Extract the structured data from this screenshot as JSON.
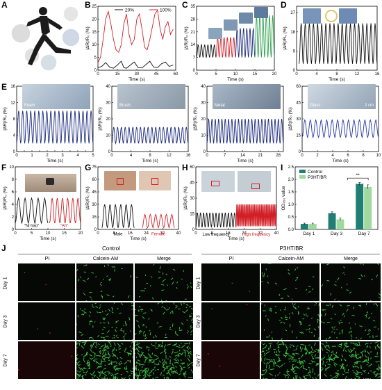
{
  "panels": {
    "A": "A",
    "B": "B",
    "C": "C",
    "D": "D",
    "E": "E",
    "F": "F",
    "G": "G",
    "H": "H",
    "I": "I",
    "J": "J"
  },
  "colors": {
    "black_series": "#111111",
    "red_series": "#d21f26",
    "navy_series": "#1b2a7c",
    "blue_series": "#2437a5",
    "green_series": "#2ea04e",
    "control_bar": "#1f7f73",
    "p3ht_bar": "#9fd9a0",
    "fluor_green": "#47d64a",
    "pi_red": "#7a1212"
  },
  "axis_labels": {
    "y_dr": "|ΔR|/R₀ (%)",
    "y_dr_plain": "ΔR/R₀ (%)",
    "time": "Time (s)",
    "od": "OD₄₅₀ value"
  },
  "chart_data": [
    {
      "id": "B",
      "type": "line",
      "xlabel": "Time (s)",
      "ylabel": "|ΔR|/R₀ (%)",
      "xlim": [
        0,
        60
      ],
      "ylim": [
        0,
        25
      ],
      "xticks": [
        0,
        15,
        30,
        45,
        60
      ],
      "yticks": [
        0,
        5,
        10,
        15,
        20,
        25
      ],
      "series": [
        {
          "name": "20%",
          "color": "#111111",
          "x": [
            0,
            3,
            6,
            9,
            12,
            15,
            18,
            20,
            22,
            25,
            28,
            31,
            34,
            37,
            40,
            43,
            46,
            49,
            52,
            55,
            58
          ],
          "y": [
            1,
            1.5,
            3,
            1.2,
            0.8,
            2,
            3.5,
            1,
            0.8,
            2,
            3.2,
            1,
            0.9,
            2.2,
            3.5,
            1.2,
            1,
            2.5,
            3.2,
            1.5,
            2
          ]
        },
        {
          "name": "100%",
          "color": "#d21f26",
          "x": [
            0,
            2,
            4,
            6,
            8,
            10,
            12,
            14,
            16,
            18,
            20,
            22,
            24,
            26,
            28,
            30,
            32,
            34,
            36,
            38,
            40,
            42,
            44,
            46,
            48,
            50,
            52,
            54,
            56,
            58
          ],
          "y": [
            3,
            5,
            12,
            20,
            23,
            18,
            12,
            8,
            7,
            10,
            18,
            22,
            14,
            10,
            12,
            20,
            22,
            16,
            9,
            8,
            12,
            17,
            22,
            23.5,
            16,
            12,
            17,
            19,
            14,
            16
          ]
        }
      ]
    },
    {
      "id": "C",
      "type": "line",
      "xlabel": "Time (s)",
      "ylabel": "|ΔR|/R₀ (%)",
      "xlim": [
        0,
        20
      ],
      "ylim": [
        0,
        35
      ],
      "xticks": [
        0,
        5,
        10,
        15,
        20
      ],
      "yticks": [
        0,
        7,
        14,
        21,
        28,
        35
      ],
      "series": [
        {
          "name": "segment-1",
          "color": "#111111",
          "x_range": [
            0,
            5
          ],
          "low": 7,
          "high": 14,
          "cycles": 6
        },
        {
          "name": "segment-2",
          "color": "#d21f26",
          "x_range": [
            5,
            10
          ],
          "low": 7,
          "high": 18,
          "cycles": 6
        },
        {
          "name": "segment-3",
          "color": "#1b2a7c",
          "x_range": [
            10,
            15
          ],
          "low": 7,
          "high": 23,
          "cycles": 6
        },
        {
          "name": "segment-4",
          "color": "#2ea04e",
          "x_range": [
            15,
            20
          ],
          "low": 7,
          "high": 30,
          "cycles": 6
        }
      ]
    },
    {
      "id": "D",
      "type": "line",
      "xlabel": "Time (s)",
      "ylabel": "|ΔR|/R₀ (%)",
      "xlim": [
        0,
        16
      ],
      "ylim": [
        0,
        30
      ],
      "xticks": [
        0,
        4,
        8,
        12,
        16
      ],
      "yticks": [
        0,
        9,
        18,
        27
      ],
      "series": [
        {
          "name": "D",
          "color": "#111111",
          "x_range": [
            0.5,
            16
          ],
          "low": 3,
          "high": 22,
          "cycles": 19
        }
      ]
    },
    {
      "id": "E1",
      "type": "line",
      "xlabel": "Time (s)",
      "ylabel": "|ΔR|/R₀ (%)",
      "inset_label": "Foam",
      "xlim": [
        0,
        5
      ],
      "ylim": [
        0,
        16
      ],
      "xticks": [
        0,
        0.5,
        1,
        1.5,
        2,
        2.5,
        3,
        3.5,
        4,
        4.5,
        5
      ],
      "xticklabels": [
        "0",
        "",
        "1",
        "",
        "2",
        "",
        "3",
        "",
        "4",
        "",
        "5"
      ],
      "yticks": [
        0,
        4,
        8,
        12,
        16
      ],
      "series": [
        {
          "name": "E1",
          "color": "#1b2a7c",
          "x_range": [
            0,
            5
          ],
          "low": 2,
          "high": 10,
          "cycles": 19
        }
      ]
    },
    {
      "id": "E2",
      "type": "line",
      "xlabel": "Time (s)",
      "ylabel": "|ΔR|/R₀ (%)",
      "inset_label": "Brush",
      "xlim": [
        0,
        16
      ],
      "ylim": [
        0,
        40
      ],
      "xticks": [
        0,
        4,
        8,
        12,
        16
      ],
      "yticks": [
        0,
        10,
        20,
        30,
        40
      ],
      "series": [
        {
          "name": "E2",
          "color": "#1b2a7c",
          "x_range": [
            0,
            16
          ],
          "low": 5,
          "high": 15,
          "cycles": 20
        }
      ]
    },
    {
      "id": "E3",
      "type": "line",
      "xlabel": "Time (s)",
      "ylabel": "|ΔR|/R₀ (%)",
      "inset_label": "Metal",
      "xlim": [
        0,
        30
      ],
      "ylim": [
        0,
        40
      ],
      "xticks": [
        0,
        7,
        14,
        21,
        28
      ],
      "yticks": [
        0,
        10,
        20,
        30,
        40
      ],
      "series": [
        {
          "name": "E3",
          "color": "#1b2a7c",
          "x_range": [
            0,
            30
          ],
          "low": 5,
          "high": 20,
          "cycles": 23
        }
      ]
    },
    {
      "id": "E4",
      "type": "line",
      "xlabel": "Time (s)",
      "ylabel": "|ΔR|/R₀ (%)",
      "inset_label": "Glass",
      "scale_label": "2 cm",
      "xlim": [
        0,
        10
      ],
      "ylim": [
        0,
        60
      ],
      "xticks": [
        0,
        2,
        4,
        6,
        8,
        10
      ],
      "yticks": [
        0,
        15,
        30,
        45,
        60
      ],
      "series": [
        {
          "name": "E4",
          "color": "#2437a5",
          "x_range": [
            0,
            10
          ],
          "low": 13,
          "high": 29,
          "cycles": 14
        }
      ]
    },
    {
      "id": "F",
      "type": "line",
      "xlabel": "Time (s)",
      "ylabel": "|ΔR|/R₀ (%)",
      "xlim": [
        0,
        20
      ],
      "ylim": [
        0,
        10
      ],
      "xticks": [
        0,
        5,
        10,
        15,
        20
      ],
      "yticks": [
        0,
        2,
        4,
        6,
        8,
        10
      ],
      "annotations": [
        "\"Ni hao\"",
        "\"Ah\""
      ],
      "series": [
        {
          "name": "\"Ni hao\"",
          "color": "#111111",
          "x_range": [
            0,
            10
          ],
          "low": 1,
          "high": 5,
          "cycles": 5
        },
        {
          "name": "\"Ah\"",
          "color": "#d21f26",
          "x_range": [
            10.5,
            20
          ],
          "low": 1,
          "high": 5,
          "cycles": 6
        }
      ]
    },
    {
      "id": "G",
      "type": "line",
      "xlabel": "Time (s)",
      "ylabel": "|ΔR|/R₀ (%)",
      "xlim": [
        0,
        40
      ],
      "ylim": [
        0,
        75
      ],
      "xticks": [
        0,
        8,
        16,
        24,
        32,
        40
      ],
      "yticks": [
        0,
        15,
        30,
        45,
        60,
        75
      ],
      "annotations": [
        "Male",
        "Female"
      ],
      "series": [
        {
          "name": "Male",
          "color": "#111111",
          "x_range": [
            2,
            18
          ],
          "low": 2,
          "high": 30,
          "cycles": 6
        },
        {
          "name": "Female",
          "color": "#d21f26",
          "x_range": [
            22,
            38
          ],
          "low": 2,
          "high": 18,
          "cycles": 6
        }
      ]
    },
    {
      "id": "H",
      "type": "line",
      "xlabel": "Time (s)",
      "ylabel": "|ΔR|/R₀ (%)",
      "xlim": [
        0,
        40
      ],
      "ylim": [
        0,
        60
      ],
      "xticks": [
        0,
        8,
        16,
        24,
        32,
        40
      ],
      "yticks": [
        0,
        15,
        30,
        45,
        60
      ],
      "annotations": [
        "Low frequency",
        "High frequency"
      ],
      "series": [
        {
          "name": "Low frequency",
          "color": "#111111",
          "x_range": [
            0,
            20
          ],
          "low": 2,
          "high": 16,
          "cycles": 13
        },
        {
          "name": "High frequency",
          "color": "#d21f26",
          "x_range": [
            20,
            40
          ],
          "low": 3,
          "high": 24,
          "cycles": 34
        }
      ]
    },
    {
      "id": "I",
      "type": "bar",
      "xlabel": "",
      "ylabel": "OD₄₅₀ value",
      "categories": [
        "Day 1",
        "Day 3",
        "Day 7"
      ],
      "ylim": [
        0,
        2.5
      ],
      "yticks": [
        0,
        0.5,
        1.0,
        1.5,
        2.0,
        2.5
      ],
      "yticklabels": [
        "0.0",
        "0.5",
        "1.0",
        "1.5",
        "2.0",
        "2.5"
      ],
      "legend_position": "top-left",
      "significance": "**",
      "series": [
        {
          "name": "Control",
          "color": "#1f7f73",
          "values": [
            0.22,
            0.65,
            1.82
          ],
          "errors": [
            0.03,
            0.05,
            0.05
          ]
        },
        {
          "name": "P3HT/BR",
          "color": "#9fd9a0",
          "values": [
            0.22,
            0.4,
            1.7
          ],
          "errors": [
            0.03,
            0.05,
            0.08
          ]
        }
      ]
    }
  ],
  "panel_j": {
    "group_left": "Control",
    "group_right": "P3HT/BR",
    "columns": [
      "PI",
      "Calcein-AM",
      "Merge"
    ],
    "rows": [
      "Day 1",
      "Day 3",
      "Day 7"
    ],
    "scale_bar": "200 μm"
  }
}
